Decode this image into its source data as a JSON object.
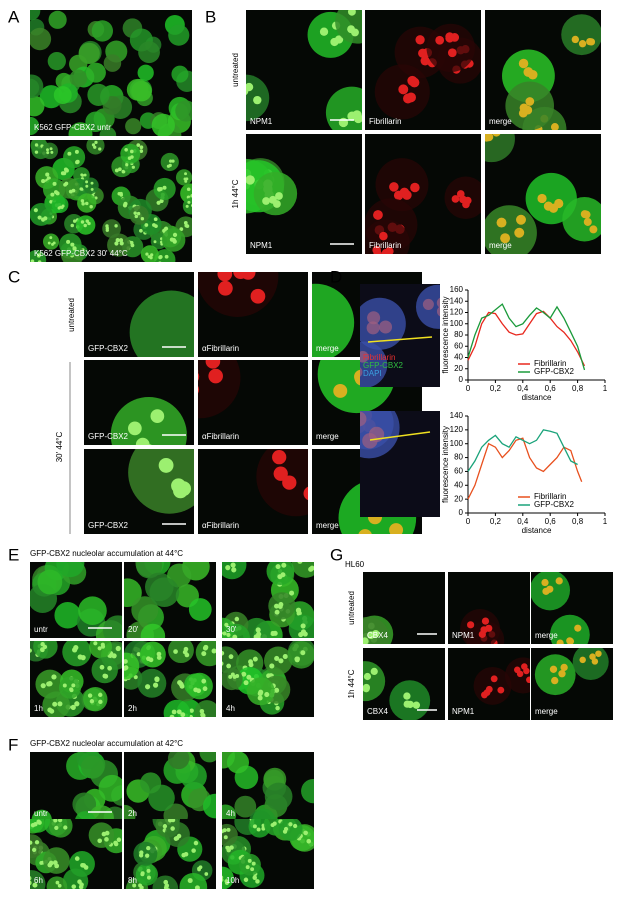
{
  "panels": {
    "A": {
      "label": "A",
      "images": [
        "K562 GFP-CBX2 untr",
        "K562 GFP-CBX2 30' 44°C"
      ]
    },
    "B": {
      "label": "B",
      "rows": [
        "untreated",
        "1h 44°C"
      ],
      "channels": [
        "NPM1",
        "Fibrillarin",
        "merge"
      ]
    },
    "C": {
      "label": "C",
      "rows": [
        "untreated",
        "30' 44°C"
      ],
      "channels": [
        "GFP-CBX2",
        "αFibrillarin",
        "merge"
      ]
    },
    "D": {
      "label": "D",
      "overlay": [
        "Fibrillarin",
        "GFP-CBX2",
        "DAPI"
      ]
    },
    "E": {
      "label": "E",
      "title": "GFP-CBX2 nucleolar accumulation at 44°C",
      "timepoints": [
        "untr",
        "20'",
        "30'",
        "1h",
        "2h",
        "4h"
      ]
    },
    "F": {
      "label": "F",
      "title": "GFP-CBX2 nucleolar accumulation at 42°C",
      "timepoints": [
        "untr",
        "2h",
        "4h",
        "6h",
        "8h",
        "10h"
      ]
    },
    "G": {
      "label": "G",
      "cell_line": "HL60",
      "rows": [
        "untreated",
        "1h 44°C"
      ],
      "channels": [
        "CBX4",
        "NPM1",
        "merge"
      ]
    }
  },
  "chart_data": [
    {
      "type": "line",
      "xlabel": "distance",
      "ylabel": "fluorescence intensity",
      "xlim": [
        0,
        1
      ],
      "xticks": [
        0,
        {
          "value": 0.2,
          "label": "0,2"
        },
        {
          "value": 0.4,
          "label": "0,4"
        },
        {
          "value": 0.6,
          "label": "0,6"
        },
        {
          "value": 0.8,
          "label": "0,8"
        },
        1
      ],
      "ylim": [
        0,
        160
      ],
      "yticks": [
        0,
        20,
        40,
        60,
        80,
        100,
        120,
        140,
        160
      ],
      "x": [
        0,
        0.05,
        0.1,
        0.15,
        0.2,
        0.25,
        0.3,
        0.35,
        0.4,
        0.45,
        0.5,
        0.55,
        0.6,
        0.65,
        0.7,
        0.75,
        0.8,
        0.85
      ],
      "series": [
        {
          "name": "Fibrillarin",
          "color": "#e8281e",
          "values": [
            35,
            60,
            100,
            120,
            118,
            100,
            85,
            80,
            82,
            100,
            118,
            122,
            110,
            95,
            85,
            70,
            50,
            25
          ]
        },
        {
          "name": "GFP-CBX2",
          "color": "#1a9a3a",
          "values": [
            40,
            80,
            110,
            115,
            125,
            135,
            110,
            95,
            100,
            115,
            128,
            120,
            110,
            130,
            110,
            85,
            60,
            18
          ]
        }
      ]
    },
    {
      "type": "line",
      "xlabel": "distance",
      "ylabel": "fluorescence intensity",
      "xlim": [
        0,
        1
      ],
      "xticks": [
        0,
        {
          "value": 0.2,
          "label": "0,2"
        },
        {
          "value": 0.4,
          "label": "0,4"
        },
        {
          "value": 0.6,
          "label": "0,6"
        },
        {
          "value": 0.8,
          "label": "0,8"
        },
        1
      ],
      "ylim": [
        0,
        140
      ],
      "yticks": [
        0,
        20,
        40,
        60,
        80,
        100,
        120,
        140
      ],
      "x": [
        0,
        0.05,
        0.1,
        0.15,
        0.2,
        0.25,
        0.3,
        0.35,
        0.4,
        0.45,
        0.5,
        0.55,
        0.6,
        0.65,
        0.7,
        0.75,
        0.8,
        0.83
      ],
      "series": [
        {
          "name": "Fibrillarin",
          "color": "#e8501e",
          "values": [
            20,
            40,
            70,
            100,
            95,
            80,
            90,
            105,
            108,
            80,
            65,
            60,
            70,
            80,
            95,
            90,
            60,
            45
          ]
        },
        {
          "name": "GFP-CBX2",
          "color": "#1aa37a",
          "values": [
            60,
            75,
            95,
            105,
            112,
            100,
            95,
            110,
            105,
            100,
            105,
            120,
            118,
            115,
            95,
            75,
            70,
            null
          ]
        }
      ]
    }
  ]
}
